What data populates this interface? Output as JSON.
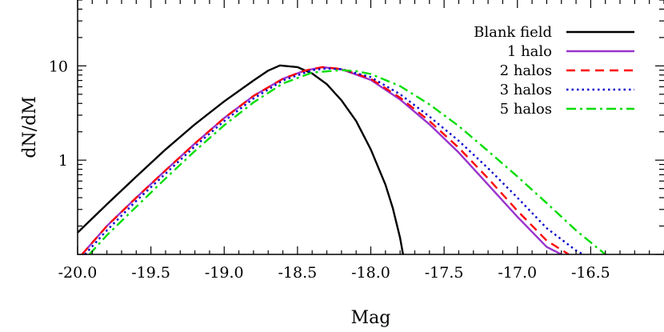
{
  "chart_data": {
    "type": "line",
    "title": "",
    "xlabel": "Mag",
    "ylabel": "dN/dM",
    "xlim": [
      -20.0,
      -16.0
    ],
    "ylim": [
      0.1,
      50
    ],
    "yscale": "log",
    "grid": false,
    "legend_position": "top-right",
    "x_ticks": [
      -20.0,
      -19.5,
      -19.0,
      -18.5,
      -18.0,
      -17.5,
      -17.0,
      -16.5
    ],
    "x_tick_labels": [
      "-20.0",
      "-19.5",
      "-19.0",
      "-18.5",
      "-18.0",
      "-17.5",
      "-17.0",
      "-16.5"
    ],
    "y_ticks": [
      1,
      10
    ],
    "y_tick_labels": [
      "1",
      "10"
    ],
    "series": [
      {
        "name": "Blank field",
        "color": "#000000",
        "dash": "solid",
        "x": [
          -20.0,
          -19.8,
          -19.6,
          -19.4,
          -19.2,
          -19.0,
          -18.8,
          -18.7,
          -18.62,
          -18.5,
          -18.4,
          -18.3,
          -18.2,
          -18.1,
          -18.0,
          -17.9,
          -17.85,
          -17.8,
          -17.78
        ],
        "values": [
          0.17,
          0.34,
          0.67,
          1.3,
          2.4,
          4.2,
          7.0,
          8.9,
          10.1,
          9.7,
          8.3,
          6.4,
          4.3,
          2.6,
          1.3,
          0.55,
          0.31,
          0.15,
          0.1
        ]
      },
      {
        "name": "1 halo",
        "color": "#9932CC",
        "dash": "solid",
        "x": [
          -19.97,
          -19.8,
          -19.6,
          -19.4,
          -19.2,
          -19.0,
          -18.8,
          -18.6,
          -18.45,
          -18.33,
          -18.2,
          -18.0,
          -17.8,
          -17.6,
          -17.4,
          -17.2,
          -17.0,
          -16.8,
          -16.7
        ],
        "values": [
          0.1,
          0.2,
          0.4,
          0.78,
          1.5,
          2.8,
          4.8,
          7.3,
          8.9,
          9.7,
          9.2,
          7.1,
          4.4,
          2.4,
          1.2,
          0.55,
          0.25,
          0.12,
          0.1
        ]
      },
      {
        "name": "2 halos",
        "color": "#FF0000",
        "dash": "dashed",
        "x": [
          -19.97,
          -19.8,
          -19.6,
          -19.4,
          -19.2,
          -19.0,
          -18.8,
          -18.6,
          -18.45,
          -18.33,
          -18.2,
          -18.0,
          -17.8,
          -17.6,
          -17.4,
          -17.2,
          -17.0,
          -16.8,
          -16.65
        ],
        "values": [
          0.1,
          0.2,
          0.4,
          0.78,
          1.5,
          2.8,
          4.8,
          7.3,
          8.9,
          9.7,
          9.3,
          7.3,
          4.6,
          2.6,
          1.35,
          0.64,
          0.29,
          0.14,
          0.1
        ]
      },
      {
        "name": "3 halos",
        "color": "#0000CC",
        "dash": "dotted",
        "x": [
          -19.95,
          -19.8,
          -19.6,
          -19.4,
          -19.2,
          -19.0,
          -18.8,
          -18.6,
          -18.4,
          -18.3,
          -18.2,
          -18.0,
          -17.8,
          -17.6,
          -17.4,
          -17.2,
          -17.0,
          -16.8,
          -16.6,
          -16.55
        ],
        "values": [
          0.1,
          0.18,
          0.37,
          0.72,
          1.4,
          2.6,
          4.5,
          7.0,
          9.0,
          9.4,
          9.2,
          7.6,
          5.0,
          2.9,
          1.6,
          0.82,
          0.4,
          0.19,
          0.11,
          0.1
        ]
      },
      {
        "name": "5 halos",
        "color": "#00DD00",
        "dash": "dashdot",
        "x": [
          -19.92,
          -19.8,
          -19.6,
          -19.4,
          -19.2,
          -19.0,
          -18.8,
          -18.6,
          -18.4,
          -18.2,
          -18.1,
          -18.0,
          -17.8,
          -17.6,
          -17.4,
          -17.2,
          -17.0,
          -16.8,
          -16.6,
          -16.4,
          -16.38
        ],
        "values": [
          0.1,
          0.16,
          0.32,
          0.64,
          1.25,
          2.35,
          4.1,
          6.5,
          8.5,
          9.0,
          8.8,
          8.2,
          6.1,
          3.9,
          2.3,
          1.25,
          0.67,
          0.35,
          0.18,
          0.1,
          0.095
        ]
      }
    ]
  }
}
